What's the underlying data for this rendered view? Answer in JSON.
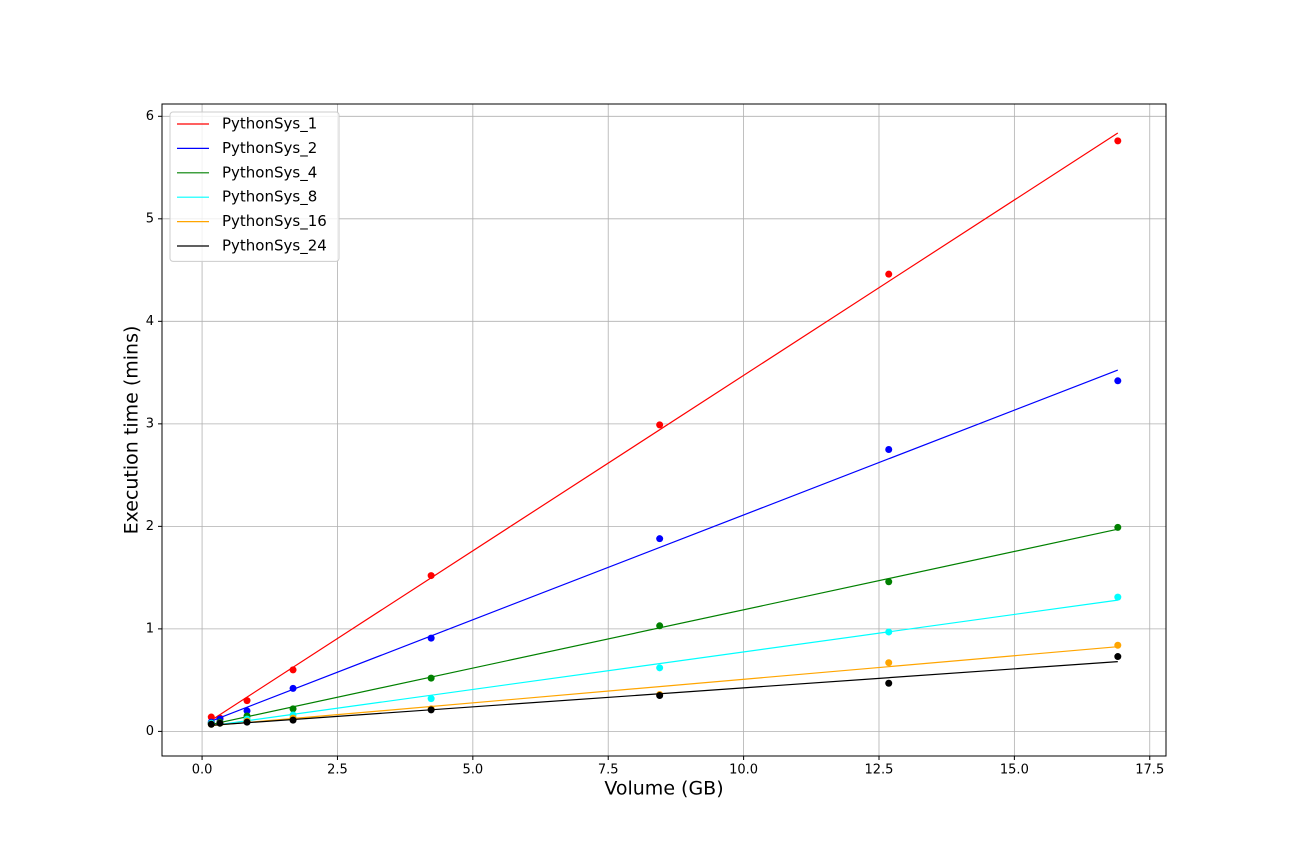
{
  "chart_data": {
    "type": "scatter",
    "fit": "linear",
    "x_label": "Volume (GB)",
    "y_label": "Execution time (mins)",
    "x": [
      0.17,
      0.33,
      0.83,
      1.68,
      4.23,
      8.45,
      12.68,
      16.91
    ],
    "series": [
      {
        "name": "PythonSys_1",
        "color": "#ff0000",
        "values": [
          0.14,
          0.13,
          0.3,
          0.6,
          1.52,
          2.99,
          4.46,
          5.76
        ]
      },
      {
        "name": "PythonSys_2",
        "color": "#0000ff",
        "values": [
          0.09,
          0.12,
          0.2,
          0.42,
          0.91,
          1.88,
          2.75,
          3.42
        ]
      },
      {
        "name": "PythonSys_4",
        "color": "#008000",
        "values": [
          0.08,
          0.09,
          0.15,
          0.22,
          0.52,
          1.03,
          1.46,
          1.99
        ]
      },
      {
        "name": "PythonSys_8",
        "color": "#00ffff",
        "values": [
          0.08,
          0.08,
          0.12,
          0.16,
          0.32,
          0.62,
          0.97,
          1.31
        ]
      },
      {
        "name": "PythonSys_16",
        "color": "#ffa500",
        "values": [
          0.07,
          0.08,
          0.1,
          0.13,
          0.22,
          0.36,
          0.67,
          0.84
        ]
      },
      {
        "name": "PythonSys_24",
        "color": "#000000",
        "values": [
          0.07,
          0.08,
          0.09,
          0.11,
          0.21,
          0.35,
          0.47,
          0.73
        ]
      }
    ],
    "xlim": [
      -0.74,
      17.8
    ],
    "ylim": [
      -0.24,
      6.12
    ],
    "xticks": [
      {
        "value": 0,
        "label": "0.0"
      },
      2.5,
      {
        "value": 5,
        "label": "5.0"
      },
      7.5,
      {
        "value": 10,
        "label": "10.0"
      },
      12.5,
      {
        "value": 15,
        "label": "15.0"
      },
      17.5
    ],
    "yticks": [
      0,
      1,
      2,
      3,
      4,
      5,
      6
    ],
    "grid": true,
    "legend": "upper-left"
  }
}
